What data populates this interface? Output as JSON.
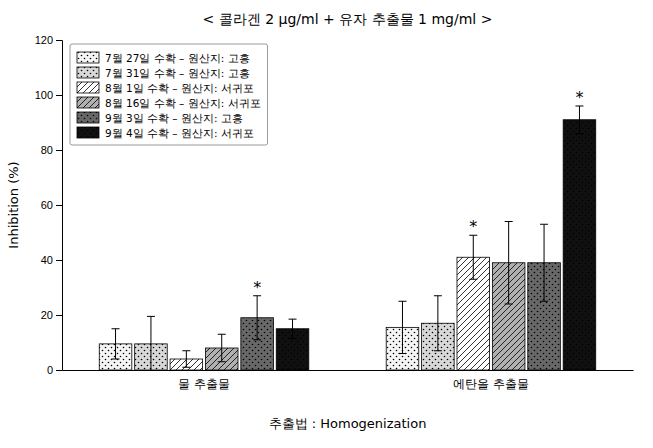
{
  "chart_data": {
    "type": "bar",
    "title": "< 콜라겐 2 μg/ml + 유자 추출물 1 mg/ml >",
    "ylabel": "Inhibition (%)",
    "xlabel": "추출법 : Homogenization",
    "categories": [
      "물 추출물",
      "에탄올 추출물"
    ],
    "series": [
      {
        "name": "7월 27일 수확 – 원산지: 고흥",
        "color": "#f5f5f5",
        "values": [
          9.5,
          15.5
        ],
        "errors": [
          5.5,
          9.5
        ]
      },
      {
        "name": "7월 31일 수확 – 원산지: 고흥",
        "color": "#d8d8d8",
        "values": [
          9.5,
          17.0
        ],
        "errors": [
          10.0,
          10.0
        ]
      },
      {
        "name": "8월 1일 수확 – 원산지: 서귀포",
        "color": "#ffffff",
        "values": [
          4.0,
          41.0
        ],
        "errors": [
          3.0,
          8.0
        ]
      },
      {
        "name": "8월 16일 수확 – 원산지: 서귀포",
        "color": "#b0b0b0",
        "values": [
          8.0,
          39.0
        ],
        "errors": [
          5.0,
          15.0
        ]
      },
      {
        "name": "9월 3일 수확 – 원산지: 고흥",
        "color": "#686868",
        "values": [
          19.0,
          39.0
        ],
        "errors": [
          8.0,
          14.0
        ]
      },
      {
        "name": "9월 4일 수확 – 원산지: 서귀포",
        "color": "#101010",
        "values": [
          15.0,
          91.0
        ],
        "errors": [
          3.5,
          5.0
        ]
      }
    ],
    "annotations": [
      {
        "text": "*",
        "series": "9월 3일 수확 – 원산지: 고흥",
        "category": "물 추출물"
      },
      {
        "text": "*",
        "series": "8월 1일 수확 – 원산지: 서귀포",
        "category": "에탄올 추출물"
      },
      {
        "text": "*",
        "series": "9월 4일 수확 – 원산지: 서귀포",
        "category": "에탄올 추출물"
      }
    ],
    "ylim": [
      0,
      120
    ],
    "yticks": [
      0,
      20,
      40,
      60,
      80,
      100,
      120
    ],
    "grid": false,
    "legend": "upper left"
  }
}
